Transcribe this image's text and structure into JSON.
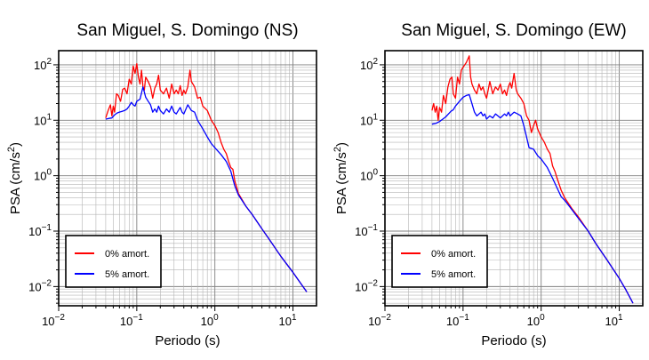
{
  "chart_data": [
    {
      "type": "line",
      "title": "San Miguel, S. Domingo (NS)",
      "xlabel": "Periodo (s)",
      "ylabel_main": "PSA (cm/s",
      "ylabel_sup": "2",
      "ylabel_end": ")",
      "xscale": "log",
      "yscale": "log",
      "xlim": [
        0.01,
        20
      ],
      "ylim": [
        0.0045,
        180
      ],
      "grid": true,
      "legend_position": "bottom-left",
      "x_ticks": [
        {
          "value": 0.01,
          "base": "10",
          "exp": "−2"
        },
        {
          "value": 0.1,
          "base": "10",
          "exp": "−1"
        },
        {
          "value": 1,
          "base": "10",
          "exp": "0"
        },
        {
          "value": 10,
          "base": "10",
          "exp": "1"
        }
      ],
      "y_ticks": [
        {
          "value": 0.01,
          "base": "10",
          "exp": "−2"
        },
        {
          "value": 0.1,
          "base": "10",
          "exp": "−1"
        },
        {
          "value": 1,
          "base": "10",
          "exp": "0"
        },
        {
          "value": 10,
          "base": "10",
          "exp": "1"
        },
        {
          "value": 100,
          "base": "10",
          "exp": "2"
        }
      ],
      "series": [
        {
          "name": "0% amort.",
          "color": "#ff0000",
          "points": [
            [
              0.04,
              11
            ],
            [
              0.043,
              15
            ],
            [
              0.046,
              19
            ],
            [
              0.048,
              12
            ],
            [
              0.05,
              18
            ],
            [
              0.052,
              14
            ],
            [
              0.055,
              30
            ],
            [
              0.058,
              28
            ],
            [
              0.062,
              22
            ],
            [
              0.066,
              36
            ],
            [
              0.07,
              38
            ],
            [
              0.075,
              30
            ],
            [
              0.08,
              55
            ],
            [
              0.085,
              45
            ],
            [
              0.09,
              95
            ],
            [
              0.095,
              70
            ],
            [
              0.1,
              105
            ],
            [
              0.105,
              60
            ],
            [
              0.11,
              45
            ],
            [
              0.115,
              80
            ],
            [
              0.12,
              40
            ],
            [
              0.125,
              35
            ],
            [
              0.13,
              60
            ],
            [
              0.14,
              50
            ],
            [
              0.15,
              40
            ],
            [
              0.16,
              25
            ],
            [
              0.17,
              38
            ],
            [
              0.18,
              45
            ],
            [
              0.19,
              65
            ],
            [
              0.2,
              35
            ],
            [
              0.22,
              30
            ],
            [
              0.24,
              38
            ],
            [
              0.26,
              25
            ],
            [
              0.28,
              45
            ],
            [
              0.3,
              30
            ],
            [
              0.32,
              35
            ],
            [
              0.34,
              30
            ],
            [
              0.36,
              42
            ],
            [
              0.38,
              28
            ],
            [
              0.4,
              35
            ],
            [
              0.42,
              30
            ],
            [
              0.45,
              40
            ],
            [
              0.48,
              80
            ],
            [
              0.5,
              50
            ],
            [
              0.55,
              40
            ],
            [
              0.6,
              25
            ],
            [
              0.65,
              26
            ],
            [
              0.7,
              18
            ],
            [
              0.8,
              15
            ],
            [
              0.9,
              10
            ],
            [
              1.0,
              8
            ],
            [
              1.1,
              6
            ],
            [
              1.2,
              4
            ],
            [
              1.3,
              3
            ],
            [
              1.4,
              2.5
            ],
            [
              1.5,
              1.8
            ],
            [
              1.6,
              1.4
            ],
            [
              1.7,
              1.3
            ],
            [
              1.8,
              0.8
            ],
            [
              1.9,
              0.62
            ],
            [
              2.0,
              0.48
            ],
            [
              2.5,
              0.28
            ],
            [
              3.0,
              0.2
            ],
            [
              4.0,
              0.11
            ],
            [
              5.0,
              0.07
            ],
            [
              7.0,
              0.035
            ],
            [
              10.0,
              0.018
            ],
            [
              15.0,
              0.008
            ]
          ]
        },
        {
          "name": "5% amort.",
          "color": "#0000ff",
          "points": [
            [
              0.04,
              10.5
            ],
            [
              0.044,
              10.8
            ],
            [
              0.048,
              11
            ],
            [
              0.052,
              12.5
            ],
            [
              0.056,
              13.5
            ],
            [
              0.06,
              14
            ],
            [
              0.065,
              14.5
            ],
            [
              0.07,
              15
            ],
            [
              0.075,
              16
            ],
            [
              0.08,
              18
            ],
            [
              0.085,
              21
            ],
            [
              0.09,
              19
            ],
            [
              0.095,
              18
            ],
            [
              0.1,
              22
            ],
            [
              0.11,
              24
            ],
            [
              0.12,
              40
            ],
            [
              0.13,
              26
            ],
            [
              0.14,
              22
            ],
            [
              0.15,
              19
            ],
            [
              0.16,
              14
            ],
            [
              0.17,
              16
            ],
            [
              0.18,
              14
            ],
            [
              0.19,
              18
            ],
            [
              0.2,
              15
            ],
            [
              0.22,
              13
            ],
            [
              0.24,
              16
            ],
            [
              0.26,
              14
            ],
            [
              0.28,
              18
            ],
            [
              0.3,
              14
            ],
            [
              0.32,
              13
            ],
            [
              0.34,
              15
            ],
            [
              0.36,
              17
            ],
            [
              0.38,
              14
            ],
            [
              0.4,
              13
            ],
            [
              0.45,
              19
            ],
            [
              0.5,
              15
            ],
            [
              0.55,
              14
            ],
            [
              0.6,
              10
            ],
            [
              0.7,
              7
            ],
            [
              0.8,
              5
            ],
            [
              0.9,
              3.8
            ],
            [
              1.0,
              3.2
            ],
            [
              1.2,
              2.4
            ],
            [
              1.4,
              1.8
            ],
            [
              1.6,
              1.2
            ],
            [
              1.8,
              0.65
            ],
            [
              2.0,
              0.45
            ],
            [
              2.5,
              0.28
            ],
            [
              3.0,
              0.2
            ],
            [
              4.0,
              0.11
            ],
            [
              5.0,
              0.07
            ],
            [
              7.0,
              0.035
            ],
            [
              10.0,
              0.018
            ],
            [
              15.0,
              0.008
            ]
          ]
        }
      ]
    },
    {
      "type": "line",
      "title": "San Miguel, S. Domingo (EW)",
      "xlabel": "Periodo (s)",
      "ylabel_main": "PSA (cm/s",
      "ylabel_sup": "2",
      "ylabel_end": ")",
      "xscale": "log",
      "yscale": "log",
      "xlim": [
        0.01,
        20
      ],
      "ylim": [
        0.0045,
        180
      ],
      "grid": true,
      "legend_position": "bottom-left",
      "x_ticks": [
        {
          "value": 0.01,
          "base": "10",
          "exp": "−2"
        },
        {
          "value": 0.1,
          "base": "10",
          "exp": "−1"
        },
        {
          "value": 1,
          "base": "10",
          "exp": "0"
        },
        {
          "value": 10,
          "base": "10",
          "exp": "1"
        }
      ],
      "y_ticks": [
        {
          "value": 0.01,
          "base": "10",
          "exp": "−2"
        },
        {
          "value": 0.1,
          "base": "10",
          "exp": "−1"
        },
        {
          "value": 1,
          "base": "10",
          "exp": "0"
        },
        {
          "value": 10,
          "base": "10",
          "exp": "1"
        },
        {
          "value": 100,
          "base": "10",
          "exp": "2"
        }
      ],
      "series": [
        {
          "name": "0% amort.",
          "color": "#ff0000",
          "points": [
            [
              0.04,
              15
            ],
            [
              0.042,
              20
            ],
            [
              0.044,
              14
            ],
            [
              0.046,
              18
            ],
            [
              0.048,
              10
            ],
            [
              0.05,
              17
            ],
            [
              0.053,
              14
            ],
            [
              0.056,
              28
            ],
            [
              0.06,
              20
            ],
            [
              0.064,
              40
            ],
            [
              0.068,
              55
            ],
            [
              0.072,
              60
            ],
            [
              0.075,
              30
            ],
            [
              0.08,
              25
            ],
            [
              0.085,
              60
            ],
            [
              0.09,
              45
            ],
            [
              0.095,
              80
            ],
            [
              0.1,
              90
            ],
            [
              0.11,
              110
            ],
            [
              0.12,
              145
            ],
            [
              0.125,
              60
            ],
            [
              0.13,
              45
            ],
            [
              0.14,
              35
            ],
            [
              0.15,
              30
            ],
            [
              0.16,
              45
            ],
            [
              0.17,
              35
            ],
            [
              0.18,
              40
            ],
            [
              0.19,
              30
            ],
            [
              0.2,
              25
            ],
            [
              0.22,
              50
            ],
            [
              0.24,
              30
            ],
            [
              0.26,
              40
            ],
            [
              0.28,
              35
            ],
            [
              0.3,
              45
            ],
            [
              0.32,
              30
            ],
            [
              0.34,
              35
            ],
            [
              0.36,
              28
            ],
            [
              0.38,
              40
            ],
            [
              0.4,
              48
            ],
            [
              0.42,
              38
            ],
            [
              0.45,
              70
            ],
            [
              0.48,
              35
            ],
            [
              0.5,
              30
            ],
            [
              0.55,
              25
            ],
            [
              0.6,
              20
            ],
            [
              0.65,
              12
            ],
            [
              0.7,
              10
            ],
            [
              0.75,
              6
            ],
            [
              0.8,
              8
            ],
            [
              0.85,
              10
            ],
            [
              0.9,
              7
            ],
            [
              1.0,
              5
            ],
            [
              1.1,
              4
            ],
            [
              1.2,
              3
            ],
            [
              1.3,
              2.5
            ],
            [
              1.4,
              1.5
            ],
            [
              1.5,
              1.2
            ],
            [
              1.6,
              0.9
            ],
            [
              1.8,
              0.55
            ],
            [
              2.0,
              0.4
            ],
            [
              2.5,
              0.25
            ],
            [
              3.0,
              0.18
            ],
            [
              4.0,
              0.1
            ],
            [
              5.0,
              0.06
            ],
            [
              7.0,
              0.03
            ],
            [
              10.0,
              0.014
            ],
            [
              12.0,
              0.009
            ],
            [
              15.0,
              0.005
            ]
          ]
        },
        {
          "name": "5% amort.",
          "color": "#0000ff",
          "points": [
            [
              0.04,
              8.5
            ],
            [
              0.045,
              8.8
            ],
            [
              0.05,
              9.5
            ],
            [
              0.055,
              10.5
            ],
            [
              0.06,
              11.5
            ],
            [
              0.065,
              13
            ],
            [
              0.07,
              14.5
            ],
            [
              0.075,
              15.5
            ],
            [
              0.08,
              18
            ],
            [
              0.09,
              22
            ],
            [
              0.1,
              26
            ],
            [
              0.11,
              28
            ],
            [
              0.12,
              29
            ],
            [
              0.13,
              20
            ],
            [
              0.14,
              14
            ],
            [
              0.15,
              12
            ],
            [
              0.16,
              13
            ],
            [
              0.17,
              14
            ],
            [
              0.18,
              12
            ],
            [
              0.19,
              13
            ],
            [
              0.2,
              10.5
            ],
            [
              0.22,
              12
            ],
            [
              0.24,
              11
            ],
            [
              0.26,
              13
            ],
            [
              0.28,
              12
            ],
            [
              0.3,
              11
            ],
            [
              0.32,
              12
            ],
            [
              0.34,
              13
            ],
            [
              0.36,
              12
            ],
            [
              0.38,
              14
            ],
            [
              0.4,
              12
            ],
            [
              0.45,
              14
            ],
            [
              0.5,
              13
            ],
            [
              0.55,
              12
            ],
            [
              0.6,
              8
            ],
            [
              0.65,
              5
            ],
            [
              0.7,
              3.2
            ],
            [
              0.8,
              3.0
            ],
            [
              0.9,
              2.3
            ],
            [
              1.0,
              2.0
            ],
            [
              1.2,
              1.4
            ],
            [
              1.4,
              0.9
            ],
            [
              1.6,
              0.6
            ],
            [
              1.8,
              0.42
            ],
            [
              2.0,
              0.36
            ],
            [
              2.5,
              0.24
            ],
            [
              3.0,
              0.17
            ],
            [
              4.0,
              0.1
            ],
            [
              5.0,
              0.06
            ],
            [
              7.0,
              0.03
            ],
            [
              10.0,
              0.014
            ],
            [
              12.0,
              0.009
            ],
            [
              15.0,
              0.005
            ]
          ]
        }
      ]
    }
  ]
}
